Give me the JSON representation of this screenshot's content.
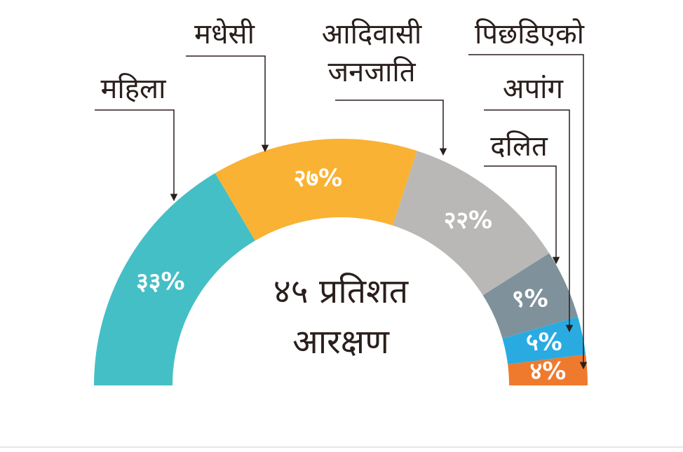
{
  "chart_data": {
    "type": "semi-donut",
    "center_label": "४५ प्रतिशत आरक्षण",
    "categories": [
      "महिला",
      "मधेसी",
      "आदिवासी जनजाति",
      "दलित",
      "अपांग",
      "पिछडिएको"
    ],
    "values": [
      33,
      27,
      22,
      9,
      5,
      4
    ],
    "value_labels": [
      "३३%",
      "२७%",
      "२२%",
      "९%",
      "५%",
      "४%"
    ],
    "colors": [
      "#45bfc6",
      "#f9b233",
      "#b9b8b7",
      "#7f919b",
      "#29abe2",
      "#ef7a2e"
    ]
  }
}
